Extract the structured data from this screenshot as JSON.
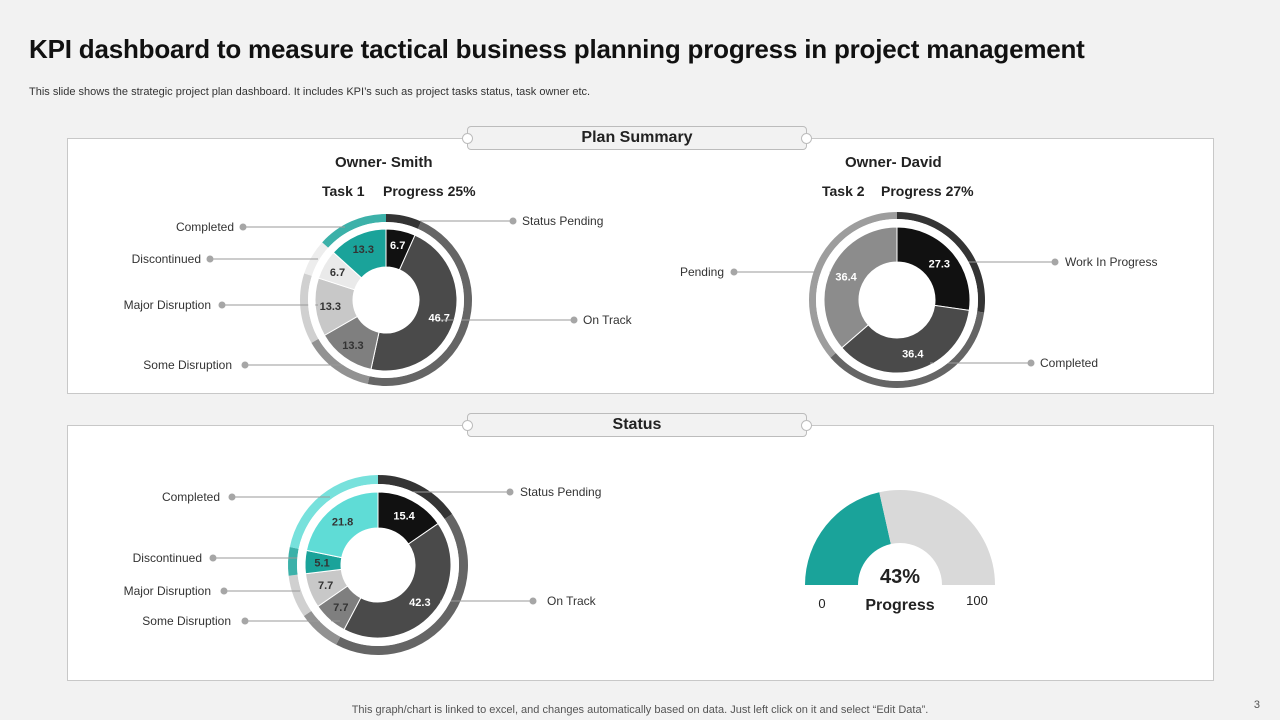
{
  "title": "KPI dashboard to measure tactical business planning progress in project management",
  "subtitle": "This slide shows the strategic project plan dashboard. It includes KPI’s such as  project tasks status, task owner etc.",
  "plan_summary_label": "Plan Summary",
  "status_label": "Status",
  "smith": {
    "owner": "Owner- Smith",
    "task": "Task 1",
    "progress": "Progress 25%"
  },
  "david": {
    "owner": "Owner- David",
    "task": "Task 2",
    "progress": "Progress 27%"
  },
  "gauge": {
    "percent_label": "43%",
    "label": "Progress",
    "min": "0",
    "max": "100",
    "value": 43,
    "colors": [
      "#1aa39a",
      "#d9d9d9"
    ]
  },
  "footer": "This graph/chart is linked to excel,  and changes automatically based on data. Just left click on it and select “Edit Data”.",
  "page_number": "3",
  "chart_data": [
    {
      "type": "pie",
      "title": "Owner- Smith Task 1",
      "slices": [
        {
          "label": "Status Pending",
          "value": 6.7,
          "display": "6.7",
          "color": "#111111",
          "text": "#ffffff"
        },
        {
          "label": "On Track",
          "value": 46.7,
          "display": "46.7",
          "color": "#4a4a4a",
          "text": "#ffffff"
        },
        {
          "label": "Some Disruption",
          "value": 13.3,
          "display": "13.3",
          "color": "#7f7f7f",
          "text": "#333333"
        },
        {
          "label": "Major Disruption",
          "value": 13.3,
          "display": "13.3",
          "color": "#c8c8c8",
          "text": "#333333"
        },
        {
          "label": "Discontinued",
          "value": 6.7,
          "display": "6.7",
          "color": "#eaeaea",
          "text": "#333333"
        },
        {
          "label": "Completed",
          "value": 13.3,
          "display": "13.3",
          "color": "#1aa39a",
          "text": "#333333"
        }
      ]
    },
    {
      "type": "pie",
      "title": "Owner- David Task 2",
      "slices": [
        {
          "label": "Work In Progress",
          "value": 27.3,
          "display": "27.3",
          "color": "#111111",
          "text": "#ffffff"
        },
        {
          "label": "Completed",
          "value": 36.4,
          "display": "36.4",
          "color": "#4a4a4a",
          "text": "#ffffff"
        },
        {
          "label": "Pending",
          "value": 36.4,
          "display": "36.4",
          "color": "#8c8c8c",
          "text": "#ffffff"
        }
      ]
    },
    {
      "type": "pie",
      "title": "Status",
      "slices": [
        {
          "label": "Status Pending",
          "value": 15.4,
          "display": "15.4",
          "color": "#111111",
          "text": "#ffffff"
        },
        {
          "label": "On Track",
          "value": 42.3,
          "display": "42.3",
          "color": "#4a4a4a",
          "text": "#ffffff"
        },
        {
          "label": "Some Disruption",
          "value": 7.7,
          "display": "7.7",
          "color": "#7f7f7f",
          "text": "#333333"
        },
        {
          "label": "Major Disruption",
          "value": 7.7,
          "display": "7.7",
          "color": "#c8c8c8",
          "text": "#333333"
        },
        {
          "label": "Discontinued",
          "value": 5.1,
          "display": "5.1",
          "color": "#1aa39a",
          "text": "#333333"
        },
        {
          "label": "Completed",
          "value": 21.8,
          "display": "21.8",
          "color": "#5fdcd6",
          "text": "#333333"
        }
      ]
    }
  ]
}
